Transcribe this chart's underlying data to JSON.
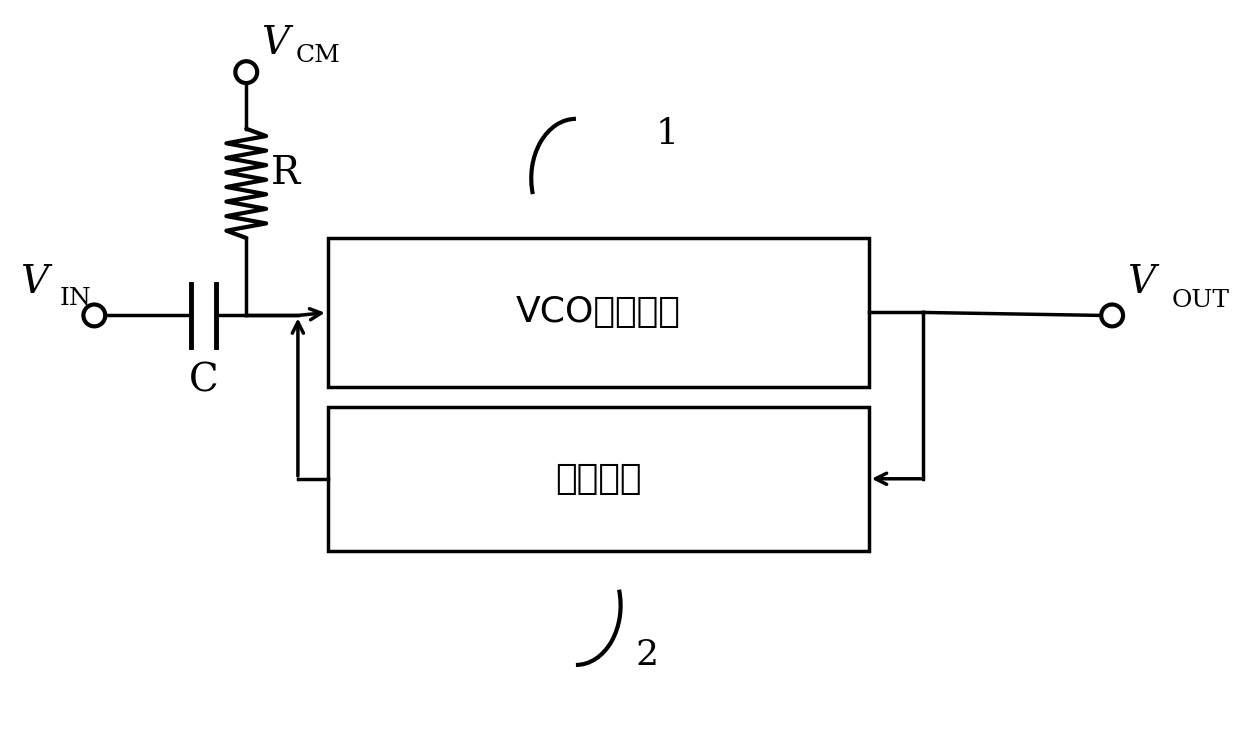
{
  "bg_color": "#ffffff",
  "line_color": "#000000",
  "line_width": 2.5,
  "box1_label": "VCO量化模块",
  "box2_label": "反馈模块",
  "label1": "1",
  "label2": "2",
  "vin_label": "V",
  "vin_sub": "IN",
  "vout_label": "V",
  "vout_sub": "OUT",
  "vcm_label": "V",
  "vcm_sub": "CM",
  "r_label": "R",
  "c_label": "C",
  "font_size_box": 26,
  "font_size_label": 28,
  "font_size_sub": 18,
  "font_size_number": 26
}
